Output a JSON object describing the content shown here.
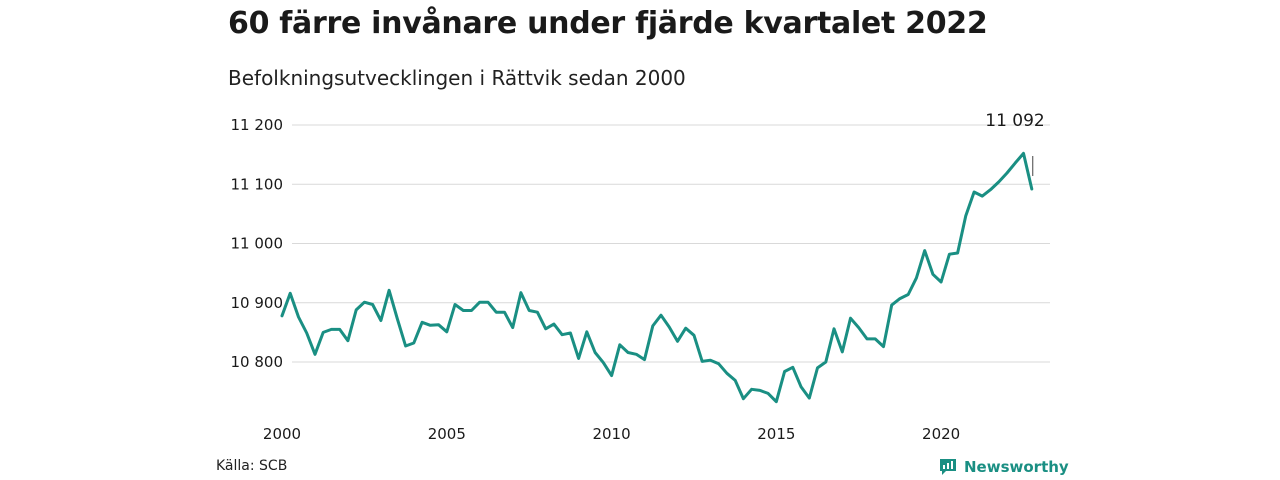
{
  "title": "60 färre invånare under fjärde kvartalet 2022",
  "subtitle": "Befolkningsutvecklingen i Rättvik sedan 2000",
  "source": "Källa: SCB",
  "brand": "Newsworthy",
  "colors": {
    "line": "#1a8f83",
    "grid": "#d9d9d9",
    "text": "#1a1a1a"
  },
  "chart_data": {
    "type": "line",
    "x_axis": {
      "min": 2000,
      "max": 2023,
      "ticks": [
        2000,
        2005,
        2010,
        2015,
        2020
      ]
    },
    "y_axis": {
      "min": 10720,
      "max": 11230,
      "ticks": [
        10800,
        10900,
        11000,
        11100,
        11200
      ],
      "tick_labels": [
        "10 800",
        "10 900",
        "11 000",
        "11 100",
        "11 200"
      ]
    },
    "grid": "horizontal",
    "end_label": "11 092",
    "series": [
      {
        "x": [
          2000.0,
          2000.25,
          2000.5,
          2000.75,
          2001.0,
          2001.25,
          2001.5,
          2001.75,
          2002.0,
          2002.25,
          2002.5,
          2002.75,
          2003.0,
          2003.25,
          2003.5,
          2003.75,
          2004.0,
          2004.25,
          2004.5,
          2004.75,
          2005.0,
          2005.25,
          2005.5,
          2005.75,
          2006.0,
          2006.25,
          2006.5,
          2006.75,
          2007.0,
          2007.25,
          2007.5,
          2007.75,
          2008.0,
          2008.25,
          2008.5,
          2008.75,
          2009.0,
          2009.25,
          2009.5,
          2009.75,
          2010.0,
          2010.25,
          2010.5,
          2010.75,
          2011.0,
          2011.25,
          2011.5,
          2011.75,
          2012.0,
          2012.25,
          2012.5,
          2012.75,
          2013.0,
          2013.25,
          2013.5,
          2013.75,
          2014.0,
          2014.25,
          2014.5,
          2014.75,
          2015.0,
          2015.25,
          2015.5,
          2015.75,
          2016.0,
          2016.25,
          2016.5,
          2016.75,
          2017.0,
          2017.25,
          2017.5,
          2017.75,
          2018.0,
          2018.25,
          2018.5,
          2018.75,
          2019.0,
          2019.25,
          2019.5,
          2019.75,
          2020.0,
          2020.25,
          2020.5,
          2020.75,
          2021.0,
          2021.25,
          2021.5,
          2021.75,
          2022.0,
          2022.25,
          2022.5,
          2022.75
        ],
        "values": [
          10878,
          10916,
          10876,
          10849,
          10813,
          10850,
          10855,
          10855,
          10836,
          10888,
          10901,
          10897,
          10870,
          10921,
          10873,
          10827,
          10832,
          10867,
          10862,
          10863,
          10851,
          10897,
          10887,
          10887,
          10901,
          10901,
          10884,
          10884,
          10858,
          10917,
          10887,
          10884,
          10856,
          10864,
          10846,
          10849,
          10806,
          10851,
          10816,
          10799,
          10777,
          10829,
          10816,
          10813,
          10804,
          10861,
          10879,
          10859,
          10835,
          10857,
          10845,
          10801,
          10803,
          10797,
          10781,
          10769,
          10738,
          10754,
          10752,
          10747,
          10733,
          10784,
          10791,
          10758,
          10739,
          10790,
          10800,
          10856,
          10817,
          10874,
          10858,
          10839,
          10839,
          10826,
          10896,
          10907,
          10914,
          10942,
          10988,
          10948,
          10935,
          10982,
          10984,
          11047,
          11087,
          11080,
          11091,
          11104,
          11119,
          11136,
          11152,
          11092
        ]
      }
    ]
  }
}
